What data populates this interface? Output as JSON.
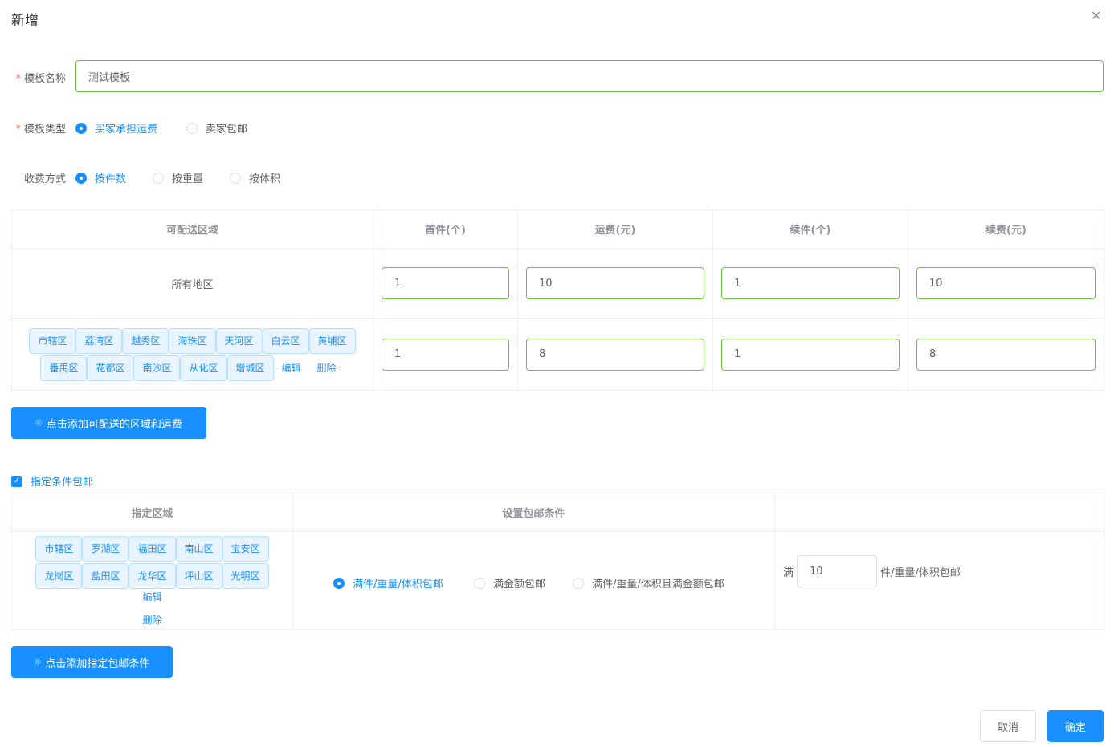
{
  "dialog": {
    "title": "新增",
    "close_icon": "close-icon"
  },
  "form": {
    "name_label": "模板名称",
    "name_value": "测试模板",
    "type_label": "模板类型",
    "type_options": [
      "买家承担运费",
      "卖家包邮"
    ],
    "type_selected": "买家承担运费",
    "charge_label": "收费方式",
    "charge_options": [
      "按件数",
      "按重量",
      "按体积"
    ],
    "charge_selected": "按件数"
  },
  "shipping_table": {
    "headers": [
      "可配送区域",
      "首件(个)",
      "运费(元)",
      "续件(个)",
      "续费(元)"
    ],
    "rows": [
      {
        "region": "所有地区",
        "values": [
          "1",
          "10",
          "1",
          "10"
        ]
      },
      {
        "tags": [
          "市辖区",
          "荔湾区",
          "越秀区",
          "海珠区",
          "天河区",
          "白云区",
          "黄埔区",
          "番禺区",
          "花都区",
          "南沙区",
          "从化区",
          "增城区"
        ],
        "edit": "编辑",
        "delete": "删除",
        "values": [
          "1",
          "8",
          "1",
          "8"
        ]
      }
    ]
  },
  "add_region_button": "点击添加可配送的区域和运费",
  "free_shipping": {
    "checkbox_label": "指定条件包邮",
    "checked": true,
    "headers": [
      "指定区域",
      "设置包邮条件",
      ""
    ],
    "row": {
      "tags": [
        "市辖区",
        "罗湖区",
        "福田区",
        "南山区",
        "宝安区",
        "龙岗区",
        "盐田区",
        "龙华区",
        "坪山区",
        "光明区"
      ],
      "edit": "编辑",
      "delete": "删除",
      "options": [
        "满件/重量/体积包邮",
        "满金额包邮",
        "满件/重量/体积且满金额包邮"
      ],
      "selected": "满件/重量/体积包邮",
      "prefix": "满",
      "value": "10",
      "suffix": "件/重量/体积包邮"
    }
  },
  "add_condition_button": "点击添加指定包邮条件",
  "footer": {
    "cancel": "取消",
    "confirm": "确定"
  },
  "colors": {
    "primary": "#1890ff",
    "valid_border": "#67c23a",
    "required": "#f56c6c"
  }
}
